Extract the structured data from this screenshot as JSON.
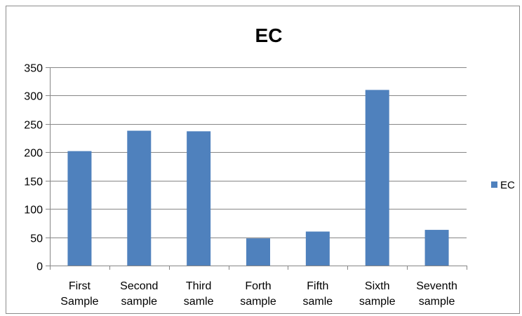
{
  "chart_data": {
    "type": "bar",
    "title": "EC",
    "xlabel": "",
    "ylabel": "",
    "categories": [
      [
        "First",
        "Sample"
      ],
      [
        "Second",
        "sample"
      ],
      [
        "Third",
        "samle"
      ],
      [
        "Forth",
        "sample"
      ],
      [
        "Fifth",
        "samle"
      ],
      [
        "Sixth",
        "sample"
      ],
      [
        "Seventh",
        "sample"
      ]
    ],
    "series": [
      {
        "name": "EC",
        "color": "#4f81bd",
        "values": [
          202,
          238,
          237,
          48,
          60,
          310,
          63
        ]
      }
    ],
    "ylim": [
      0,
      350
    ],
    "yticks": [
      0,
      50,
      100,
      150,
      200,
      250,
      300,
      350
    ],
    "grid": true,
    "legend": "right"
  }
}
